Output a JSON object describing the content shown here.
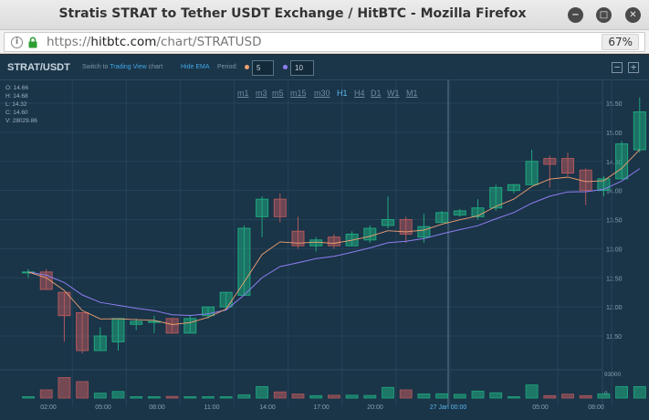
{
  "window": {
    "title": "Stratis STRAT to Tether USDT Exchange / HitBTC - Mozilla Firefox",
    "minimize_glyph": "−",
    "maximize_glyph": "□",
    "close_glyph": "✕"
  },
  "urlbar": {
    "url_prefix": "https://",
    "url_host": "hitbtc.com",
    "url_path": "/chart/STRATUSD",
    "zoom": "67%"
  },
  "chart_toolbar": {
    "symbol": "STRAT/USDT",
    "switch_prefix": "Switch to ",
    "switch_link": "Trading View",
    "switch_suffix": " chart",
    "hide_ema": "Hide EMA",
    "period_label": "Period:",
    "ema1_value": "5",
    "ema2_value": "10",
    "ema1_color": "#f0a070",
    "ema2_color": "#8e7ff0",
    "zoom_out": "−",
    "zoom_in": "+"
  },
  "timeframes": [
    "m1",
    "m3",
    "m5",
    "m15",
    "m30",
    "H1",
    "H4",
    "D1",
    "W1",
    "M1"
  ],
  "active_timeframe": "H1",
  "ohlc": {
    "open": "O: 14.66",
    "high": "H: 14.68",
    "low": "L: 14.32",
    "close": "C: 14.60",
    "volume": "V: 28029.86"
  },
  "chart_data": {
    "type": "candlestick",
    "y_ticks": [
      "15.50",
      "15.00",
      "14.50",
      "14.00",
      "13.50",
      "13.00",
      "12.50",
      "12.00",
      "11.50"
    ],
    "ylim": [
      11.4,
      15.6
    ],
    "x_ticks": [
      "02:00",
      "05:00",
      "08:00",
      "11:00",
      "14:00",
      "17:00",
      "20:00",
      "27 Jan 00:00",
      "05:00",
      "08:00"
    ],
    "volume_ticks": [
      "93000",
      "0"
    ],
    "up_color": "#1fa77e",
    "down_color": "#b0585c",
    "candles": [
      {
        "o": 12.6,
        "h": 12.65,
        "l": 12.5,
        "c": 12.6,
        "v": 2000
      },
      {
        "o": 12.6,
        "h": 12.65,
        "l": 12.3,
        "c": 12.3,
        "v": 20000
      },
      {
        "o": 12.25,
        "h": 12.25,
        "l": 11.4,
        "c": 11.85,
        "v": 50000
      },
      {
        "o": 11.9,
        "h": 11.9,
        "l": 11.2,
        "c": 11.25,
        "v": 40000
      },
      {
        "o": 11.25,
        "h": 11.65,
        "l": 11.25,
        "c": 11.5,
        "v": 12000
      },
      {
        "o": 11.4,
        "h": 11.8,
        "l": 11.25,
        "c": 11.8,
        "v": 16000
      },
      {
        "o": 11.7,
        "h": 11.8,
        "l": 11.6,
        "c": 11.75,
        "v": 3000
      },
      {
        "o": 11.75,
        "h": 11.85,
        "l": 11.55,
        "c": 11.75,
        "v": 1500
      },
      {
        "o": 11.8,
        "h": 11.8,
        "l": 11.55,
        "c": 11.55,
        "v": 4000
      },
      {
        "o": 11.55,
        "h": 11.85,
        "l": 11.55,
        "c": 11.8,
        "v": 2500
      },
      {
        "o": 11.85,
        "h": 12.0,
        "l": 11.8,
        "c": 12.0,
        "v": 1500
      },
      {
        "o": 12.0,
        "h": 12.25,
        "l": 11.95,
        "c": 12.25,
        "v": 2500
      },
      {
        "o": 12.2,
        "h": 13.4,
        "l": 12.2,
        "c": 13.35,
        "v": 8000
      },
      {
        "o": 13.55,
        "h": 13.9,
        "l": 13.2,
        "c": 13.85,
        "v": 28000
      },
      {
        "o": 13.85,
        "h": 13.95,
        "l": 13.45,
        "c": 13.55,
        "v": 15000
      },
      {
        "o": 13.3,
        "h": 13.55,
        "l": 13.0,
        "c": 13.05,
        "v": 10000
      },
      {
        "o": 13.05,
        "h": 13.2,
        "l": 12.95,
        "c": 13.15,
        "v": 6000
      },
      {
        "o": 13.2,
        "h": 13.25,
        "l": 13.0,
        "c": 13.05,
        "v": 7000
      },
      {
        "o": 13.05,
        "h": 13.3,
        "l": 13.05,
        "c": 13.25,
        "v": 7000
      },
      {
        "o": 13.15,
        "h": 13.4,
        "l": 13.1,
        "c": 13.35,
        "v": 6500
      },
      {
        "o": 13.4,
        "h": 13.9,
        "l": 13.35,
        "c": 13.5,
        "v": 26000
      },
      {
        "o": 13.5,
        "h": 13.55,
        "l": 13.1,
        "c": 13.25,
        "v": 20000
      },
      {
        "o": 13.2,
        "h": 13.6,
        "l": 13.1,
        "c": 13.38,
        "v": 10000
      },
      {
        "o": 13.45,
        "h": 13.65,
        "l": 13.45,
        "c": 13.62,
        "v": 10500
      },
      {
        "o": 13.58,
        "h": 13.68,
        "l": 13.55,
        "c": 13.65,
        "v": 9000
      },
      {
        "o": 13.55,
        "h": 13.85,
        "l": 13.5,
        "c": 13.7,
        "v": 17000
      },
      {
        "o": 13.7,
        "h": 14.1,
        "l": 13.65,
        "c": 14.05,
        "v": 13000
      },
      {
        "o": 14.0,
        "h": 14.1,
        "l": 13.95,
        "c": 14.1,
        "v": 3000
      },
      {
        "o": 14.1,
        "h": 14.7,
        "l": 14.1,
        "c": 14.5,
        "v": 32000
      },
      {
        "o": 14.55,
        "h": 14.6,
        "l": 14.05,
        "c": 14.45,
        "v": 6000
      },
      {
        "o": 14.55,
        "h": 14.65,
        "l": 14.25,
        "c": 14.3,
        "v": 9500
      },
      {
        "o": 14.35,
        "h": 14.38,
        "l": 13.75,
        "c": 14.0,
        "v": 6000
      },
      {
        "o": 14.0,
        "h": 14.25,
        "l": 13.9,
        "c": 14.2,
        "v": 10500
      },
      {
        "o": 14.2,
        "h": 14.85,
        "l": 14.2,
        "c": 14.8,
        "v": 28000
      },
      {
        "o": 14.7,
        "h": 15.6,
        "l": 14.65,
        "c": 15.35,
        "v": 28000
      }
    ]
  }
}
